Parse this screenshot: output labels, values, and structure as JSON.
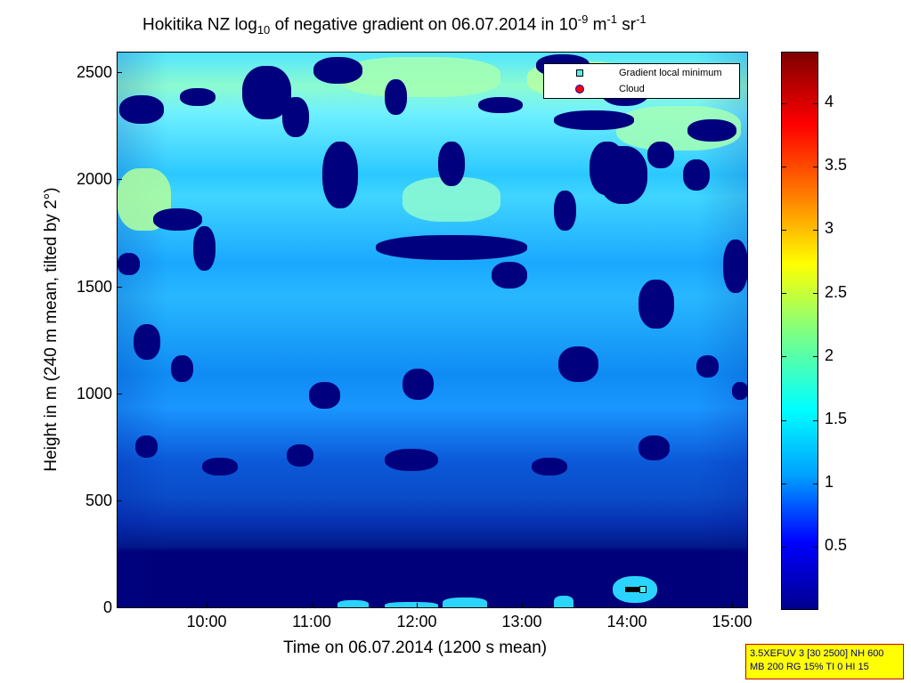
{
  "chart_data": {
    "type": "heatmap",
    "title": {
      "prefix": "Hokitika NZ log",
      "sub": "10",
      "mid": " of negative gradient on 06.07.2014 in 10",
      "sup1": "-9",
      "unit1": " m",
      "sup2": "-1",
      "unit2": " sr",
      "sup3": "-1"
    },
    "xlabel": "Time on 06.07.2014 (1200 s mean)",
    "ylabel": "Height in m (240 m mean, tilted by 2°)",
    "x_ticks": [
      "10:00",
      "11:00",
      "12:00",
      "13:00",
      "14:00",
      "15:00"
    ],
    "y_ticks": [
      "0",
      "500",
      "1000",
      "1500",
      "2000",
      "2500"
    ],
    "ylim": [
      0,
      2600
    ],
    "colorbar": {
      "colormap": "jet",
      "range": [
        0,
        4.4
      ],
      "ticks": [
        "0.5",
        "1",
        "1.5",
        "2",
        "2.5",
        "3",
        "3.5",
        "4"
      ]
    },
    "legend": [
      {
        "label": "Gradient local minimum",
        "symbol": "square",
        "color": "#55eeee"
      },
      {
        "label": "Cloud",
        "symbol": "circle",
        "color": "#ff0000"
      }
    ],
    "legend_position": "top-right",
    "gradient_local_minimum": {
      "time_start": "14:00",
      "time_end": "14:10",
      "height_m": 90
    }
  },
  "infobox": {
    "line1": "3.5XEFUV 3 [30 2500] NH 600",
    "line2": "MB 200 RG 15% TI 0 HI 15"
  }
}
